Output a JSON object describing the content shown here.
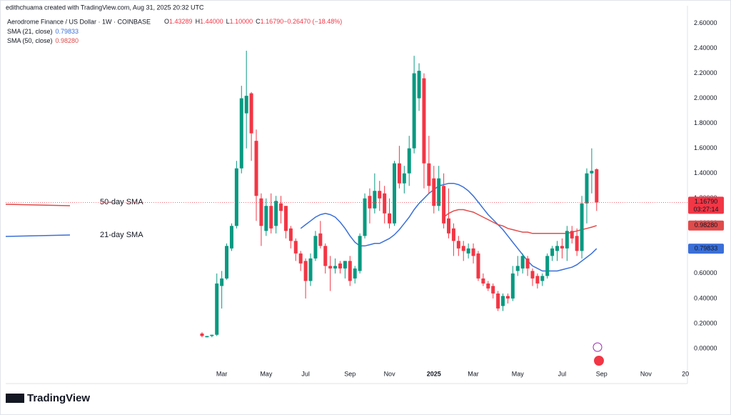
{
  "chart_data": {
    "type": "candlestick",
    "credit": "edithchuama created with TradingView.com, Aug 31, 2025 20:32 UTC",
    "title": "Aerodrome Finance / US Dollar · 1W · COINBASE",
    "ohlc_legend": [
      {
        "key": "O",
        "value": "1.43289"
      },
      {
        "key": "H",
        "value": "1.44000"
      },
      {
        "key": "L",
        "value": "1.10000"
      },
      {
        "key": "C",
        "value": "1.16790"
      },
      {
        "key": "",
        "value": "−0.26470 (−18.48%)"
      }
    ],
    "up_color": "#089981",
    "down_color": "#f23645",
    "categories": [
      null,
      null,
      null,
      null,
      "Mar",
      null,
      null,
      null,
      null,
      null,
      null,
      null,
      null,
      "May",
      null,
      null,
      null,
      null,
      null,
      null,
      null,
      "Jul",
      null,
      null,
      null,
      null,
      null,
      null,
      null,
      null,
      "Sep",
      null,
      null,
      null,
      null,
      null,
      null,
      null,
      "Nov",
      null,
      null,
      null,
      null,
      null,
      null,
      null,
      null,
      "2025",
      null,
      null,
      null,
      null,
      null,
      null,
      null,
      "Mar",
      null,
      null,
      null,
      null,
      null,
      null,
      null,
      null,
      "May",
      null,
      null,
      null,
      null,
      null,
      null,
      null,
      null,
      "Jul",
      null,
      null,
      null,
      null,
      null,
      null,
      null,
      "Sep",
      null,
      null,
      null,
      null,
      null,
      null,
      null,
      null,
      "Nov",
      null,
      null,
      null,
      null,
      null,
      null,
      null,
      "20"
    ],
    "open": [
      0.12,
      0.09,
      0.1,
      0.11,
      0.5,
      0.56,
      0.8,
      0.98,
      1.44,
      1.88,
      2.04,
      1.66,
      1.2,
      0.94,
      1.14,
      0.98,
      1.16,
      1.14,
      0.96,
      0.86,
      0.76,
      0.7,
      0.54,
      0.72,
      0.92,
      0.82,
      0.66,
      0.64,
      0.68,
      0.64,
      0.7,
      0.56,
      0.62,
      0.9,
      1.22,
      1.12,
      1.26,
      1.24,
      1.08,
      1.0,
      1.48,
      1.32,
      1.4,
      1.6,
      2.0,
      2.16,
      1.48,
      1.36,
      1.14,
      1.3,
      1.04,
      0.96,
      0.86,
      0.82,
      0.76,
      0.8,
      0.76,
      0.56,
      0.52,
      0.5,
      0.44,
      0.34,
      0.42,
      0.4,
      0.62,
      0.64,
      0.72,
      0.62,
      0.58,
      0.54,
      0.58,
      0.74,
      0.78,
      0.82,
      0.8,
      0.94,
      0.9,
      0.78,
      1.16,
      1.4,
      1.43289,
      null,
      null,
      null,
      null,
      null,
      null,
      null,
      null,
      null,
      null,
      null,
      null,
      null,
      null,
      null,
      null,
      null,
      null
    ],
    "high": [
      0.13,
      0.1,
      0.11,
      0.6,
      0.62,
      0.84,
      1.0,
      1.5,
      2.1,
      2.38,
      2.05,
      1.75,
      1.24,
      1.2,
      1.24,
      1.22,
      1.22,
      1.14,
      0.98,
      0.88,
      0.78,
      0.72,
      0.76,
      0.94,
      1.02,
      0.84,
      0.74,
      0.72,
      0.7,
      0.7,
      0.74,
      0.66,
      0.92,
      1.24,
      1.28,
      1.4,
      1.34,
      1.3,
      1.2,
      1.5,
      1.62,
      1.46,
      1.7,
      2.34,
      2.28,
      2.2,
      1.7,
      1.46,
      1.46,
      1.4,
      1.28,
      1.0,
      0.9,
      0.86,
      0.84,
      0.84,
      0.78,
      0.6,
      0.54,
      0.52,
      0.46,
      0.44,
      0.44,
      0.66,
      0.74,
      0.76,
      0.74,
      0.64,
      0.6,
      0.6,
      0.76,
      0.82,
      0.86,
      0.88,
      0.98,
      0.98,
      0.96,
      1.22,
      1.44,
      1.6,
      1.44,
      null,
      null,
      null,
      null,
      null,
      null,
      null,
      null,
      null,
      null,
      null,
      null,
      null,
      null,
      null,
      null,
      null,
      null
    ],
    "low": [
      0.09,
      0.09,
      0.09,
      0.1,
      0.32,
      0.55,
      0.78,
      0.96,
      1.4,
      1.6,
      1.5,
      1.02,
      0.82,
      0.9,
      0.92,
      0.92,
      1.0,
      0.88,
      0.8,
      0.7,
      0.62,
      0.4,
      0.5,
      0.7,
      0.8,
      0.6,
      0.46,
      0.6,
      0.6,
      0.56,
      0.5,
      0.52,
      0.6,
      0.88,
      1.0,
      1.08,
      1.1,
      1.0,
      0.96,
      0.98,
      1.28,
      1.24,
      1.3,
      1.56,
      1.9,
      1.28,
      1.24,
      1.08,
      1.1,
      0.96,
      0.88,
      0.74,
      0.74,
      0.7,
      0.72,
      0.68,
      0.54,
      0.5,
      0.46,
      0.4,
      0.3,
      0.3,
      0.36,
      0.38,
      0.58,
      0.6,
      0.58,
      0.5,
      0.48,
      0.5,
      0.56,
      0.7,
      0.7,
      0.72,
      0.7,
      0.84,
      0.74,
      0.72,
      1.0,
      1.24,
      1.1,
      null,
      null,
      null,
      null,
      null,
      null,
      null,
      null,
      null,
      null,
      null,
      null,
      null,
      null,
      null,
      null,
      null,
      null
    ],
    "close": [
      0.1,
      0.1,
      0.11,
      0.52,
      0.56,
      0.82,
      0.98,
      1.44,
      2.0,
      2.02,
      1.72,
      1.22,
      0.98,
      1.14,
      0.96,
      1.18,
      1.1,
      0.94,
      0.86,
      0.76,
      0.68,
      0.54,
      0.72,
      0.9,
      0.82,
      0.66,
      0.64,
      0.66,
      0.64,
      0.7,
      0.54,
      0.64,
      0.9,
      1.2,
      1.12,
      1.26,
      1.2,
      1.08,
      1.0,
      1.48,
      1.32,
      1.4,
      1.6,
      2.2,
      2.22,
      1.48,
      1.3,
      1.14,
      1.36,
      1.0,
      0.92,
      0.86,
      0.8,
      0.78,
      0.8,
      0.74,
      0.56,
      0.52,
      0.48,
      0.44,
      0.32,
      0.42,
      0.4,
      0.6,
      0.66,
      0.74,
      0.64,
      0.56,
      0.52,
      0.58,
      0.74,
      0.8,
      0.82,
      0.8,
      0.94,
      0.88,
      0.78,
      1.16,
      1.4,
      1.42,
      1.1679,
      null,
      null,
      null,
      null,
      null,
      null,
      null,
      null,
      null,
      null,
      null,
      null,
      null,
      null,
      null,
      null,
      null,
      null
    ],
    "last_price_label": "1.16790",
    "countdown": "03:27:14",
    "series": [
      {
        "name": "SMA (21, close)",
        "color": "#3a6fd8",
        "last_label": "0.79833",
        "values": [
          null,
          null,
          null,
          null,
          null,
          null,
          null,
          null,
          null,
          null,
          null,
          null,
          null,
          null,
          null,
          null,
          null,
          null,
          null,
          null,
          0.96,
          0.99,
          1.02,
          1.05,
          1.07,
          1.08,
          1.07,
          1.05,
          1.01,
          0.96,
          0.9,
          0.85,
          0.82,
          0.82,
          0.83,
          0.84,
          0.84,
          0.86,
          0.88,
          0.91,
          0.95,
          1.0,
          1.05,
          1.11,
          1.16,
          1.2,
          1.24,
          1.27,
          1.3,
          1.31,
          1.32,
          1.32,
          1.31,
          1.29,
          1.26,
          1.22,
          1.17,
          1.12,
          1.07,
          1.03,
          0.99,
          0.95,
          0.9,
          0.85,
          0.8,
          0.75,
          0.7,
          0.66,
          0.64,
          0.62,
          0.62,
          0.62,
          0.62,
          0.63,
          0.64,
          0.65,
          0.67,
          0.7,
          0.73,
          0.76,
          0.79833,
          null,
          null,
          null,
          null,
          null,
          null,
          null,
          null,
          null,
          null,
          null,
          null,
          null,
          null,
          null,
          null,
          null,
          null
        ]
      },
      {
        "name": "SMA (50, close)",
        "color": "#e04b4b",
        "last_label": "0.98280",
        "values": [
          null,
          null,
          null,
          null,
          null,
          null,
          null,
          null,
          null,
          null,
          null,
          null,
          null,
          null,
          null,
          null,
          null,
          null,
          null,
          null,
          null,
          null,
          null,
          null,
          null,
          null,
          null,
          null,
          null,
          null,
          null,
          null,
          null,
          null,
          null,
          null,
          null,
          null,
          null,
          null,
          null,
          null,
          null,
          null,
          null,
          null,
          null,
          null,
          null,
          1.05,
          1.08,
          1.1,
          1.11,
          1.11,
          1.1,
          1.09,
          1.07,
          1.05,
          1.03,
          1.01,
          0.99,
          0.98,
          0.96,
          0.95,
          0.94,
          0.93,
          0.93,
          0.92,
          0.92,
          0.92,
          0.92,
          0.92,
          0.92,
          0.92,
          0.92,
          0.93,
          0.94,
          0.95,
          0.96,
          0.97,
          0.9828,
          null,
          null,
          null,
          null,
          null,
          null,
          null,
          null,
          null,
          null,
          null,
          null,
          null,
          null,
          null,
          null,
          null,
          null
        ]
      }
    ],
    "annotations": [
      {
        "text": "50-day SMA",
        "color": "#e04b4b"
      },
      {
        "text": "21-day SMA",
        "color": "#3a6fd8"
      }
    ],
    "ylim": [
      -0.28,
      2.74
    ],
    "yticks": [
      {
        "value": 0,
        "label": "0.00000"
      },
      {
        "value": 0.2,
        "label": "0.20000"
      },
      {
        "value": 0.4,
        "label": "0.40000"
      },
      {
        "value": 0.6,
        "label": "0.60000"
      },
      {
        "value": 0.8,
        "label": "0.80000"
      },
      {
        "value": 1.0,
        "label": "1.00000"
      },
      {
        "value": 1.2,
        "label": "1.20000"
      },
      {
        "value": 1.4,
        "label": "1.40000"
      },
      {
        "value": 1.6,
        "label": "1.60000"
      },
      {
        "value": 1.8,
        "label": "1.80000"
      },
      {
        "value": 2.0,
        "label": "2.00000"
      },
      {
        "value": 2.2,
        "label": "2.20000"
      },
      {
        "value": 2.4,
        "label": "2.40000"
      },
      {
        "value": 2.6,
        "label": "2.60000"
      }
    ],
    "grid": false,
    "brand": "TradingView"
  }
}
